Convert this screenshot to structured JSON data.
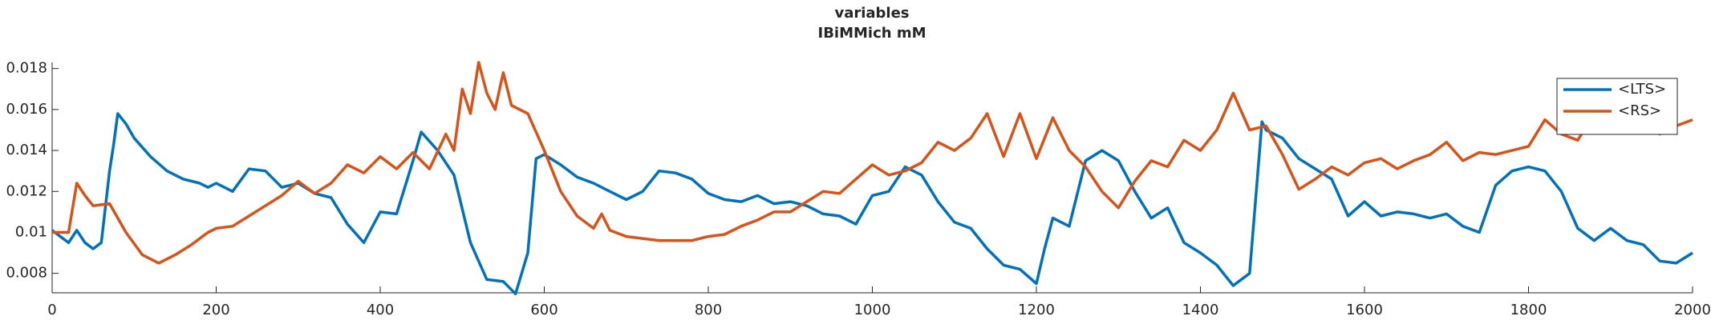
{
  "chart_data": {
    "type": "line",
    "title": "variables",
    "subtitle": "IBiMMich mM",
    "xlim": [
      0,
      2000
    ],
    "xticks": [
      0,
      200,
      400,
      600,
      800,
      1000,
      1200,
      1400,
      1600,
      1800,
      2000
    ],
    "ylim": [
      0.00705,
      0.0183
    ],
    "yticks": [
      0.008,
      0.01,
      0.012,
      0.014,
      0.016,
      0.018
    ],
    "legend": "northeast",
    "series": [
      {
        "name": "<LTS>",
        "color": "#0072bd",
        "x": [
          0,
          10,
          20,
          30,
          40,
          50,
          60,
          70,
          75,
          80,
          90,
          100,
          120,
          140,
          160,
          180,
          190,
          200,
          220,
          240,
          260,
          280,
          300,
          320,
          340,
          360,
          380,
          400,
          420,
          440,
          450,
          470,
          490,
          510,
          530,
          550,
          565,
          580,
          590,
          600,
          620,
          640,
          660,
          680,
          700,
          720,
          740,
          760,
          780,
          800,
          820,
          840,
          860,
          880,
          900,
          920,
          940,
          960,
          980,
          1000,
          1020,
          1040,
          1060,
          1080,
          1100,
          1120,
          1140,
          1160,
          1180,
          1200,
          1210,
          1220,
          1240,
          1260,
          1280,
          1300,
          1320,
          1340,
          1360,
          1380,
          1400,
          1420,
          1440,
          1460,
          1475,
          1480,
          1500,
          1520,
          1540,
          1560,
          1580,
          1600,
          1620,
          1640,
          1660,
          1680,
          1700,
          1720,
          1740,
          1760,
          1780,
          1800,
          1820,
          1840,
          1860,
          1880,
          1900,
          1920,
          1940,
          1960,
          1980,
          2000
        ],
        "values": [
          0.0101,
          0.0098,
          0.0095,
          0.0101,
          0.0095,
          0.0092,
          0.0095,
          0.013,
          0.0143,
          0.0158,
          0.0153,
          0.0146,
          0.0137,
          0.013,
          0.0126,
          0.0124,
          0.0122,
          0.0124,
          0.012,
          0.0131,
          0.013,
          0.0122,
          0.0124,
          0.0119,
          0.0117,
          0.0104,
          0.0095,
          0.011,
          0.0109,
          0.0135,
          0.0149,
          0.014,
          0.0128,
          0.0095,
          0.0077,
          0.0076,
          0.007,
          0.009,
          0.0136,
          0.0138,
          0.0133,
          0.0127,
          0.0124,
          0.012,
          0.0116,
          0.012,
          0.013,
          0.0129,
          0.0126,
          0.0119,
          0.0116,
          0.0115,
          0.0118,
          0.0114,
          0.0115,
          0.0113,
          0.0109,
          0.0108,
          0.0104,
          0.0118,
          0.012,
          0.0132,
          0.0128,
          0.0115,
          0.0105,
          0.0102,
          0.0092,
          0.0084,
          0.0082,
          0.0075,
          0.0092,
          0.0107,
          0.0103,
          0.0135,
          0.014,
          0.0135,
          0.012,
          0.0107,
          0.0112,
          0.0095,
          0.009,
          0.0084,
          0.0074,
          0.008,
          0.0154,
          0.015,
          0.0146,
          0.0136,
          0.0131,
          0.0126,
          0.0108,
          0.0115,
          0.0108,
          0.011,
          0.0109,
          0.0107,
          0.0109,
          0.0103,
          0.01,
          0.0123,
          0.013,
          0.0132,
          0.013,
          0.012,
          0.0102,
          0.0096,
          0.0102,
          0.0096,
          0.0094,
          0.0086,
          0.0085,
          0.009
        ]
      },
      {
        "name": "<RS>",
        "color": "#d95319",
        "x": [
          0,
          20,
          30,
          40,
          50,
          70,
          90,
          110,
          130,
          150,
          170,
          190,
          200,
          220,
          240,
          260,
          280,
          300,
          320,
          340,
          360,
          380,
          400,
          420,
          440,
          460,
          480,
          490,
          500,
          510,
          520,
          530,
          540,
          550,
          560,
          580,
          600,
          620,
          640,
          660,
          670,
          680,
          700,
          740,
          780,
          800,
          820,
          840,
          860,
          880,
          900,
          920,
          940,
          960,
          980,
          1000,
          1020,
          1040,
          1060,
          1080,
          1100,
          1120,
          1140,
          1160,
          1180,
          1200,
          1220,
          1240,
          1260,
          1280,
          1300,
          1320,
          1340,
          1360,
          1380,
          1400,
          1420,
          1440,
          1460,
          1480,
          1500,
          1520,
          1540,
          1560,
          1580,
          1600,
          1620,
          1640,
          1660,
          1680,
          1700,
          1720,
          1740,
          1760,
          1780,
          1800,
          1820,
          1840,
          1860,
          1880,
          1900,
          1920,
          1940,
          1960,
          1980,
          2000
        ],
        "values": [
          0.01,
          0.01,
          0.0124,
          0.0118,
          0.0113,
          0.0114,
          0.01,
          0.0089,
          0.0085,
          0.0089,
          0.0094,
          0.01,
          0.0102,
          0.0103,
          0.0108,
          0.0113,
          0.0118,
          0.0125,
          0.0119,
          0.0124,
          0.0133,
          0.0129,
          0.0137,
          0.0131,
          0.0139,
          0.0131,
          0.0148,
          0.014,
          0.017,
          0.0158,
          0.0183,
          0.0168,
          0.016,
          0.0178,
          0.0162,
          0.0158,
          0.014,
          0.012,
          0.0108,
          0.0102,
          0.0109,
          0.0101,
          0.0098,
          0.0096,
          0.0096,
          0.0098,
          0.0099,
          0.0103,
          0.0106,
          0.011,
          0.011,
          0.0115,
          0.012,
          0.0119,
          0.0126,
          0.0133,
          0.0128,
          0.013,
          0.0134,
          0.0144,
          0.014,
          0.0146,
          0.0158,
          0.0137,
          0.0158,
          0.0136,
          0.0156,
          0.014,
          0.0132,
          0.012,
          0.0112,
          0.0125,
          0.0135,
          0.0132,
          0.0145,
          0.014,
          0.015,
          0.0168,
          0.015,
          0.0152,
          0.0138,
          0.0121,
          0.0126,
          0.0132,
          0.0128,
          0.0134,
          0.0136,
          0.0131,
          0.0135,
          0.0138,
          0.0144,
          0.0135,
          0.0139,
          0.0138,
          0.014,
          0.0142,
          0.0155,
          0.0148,
          0.0145,
          0.0158,
          0.0149,
          0.015,
          0.0157,
          0.0148,
          0.0152,
          0.0155
        ]
      }
    ]
  }
}
